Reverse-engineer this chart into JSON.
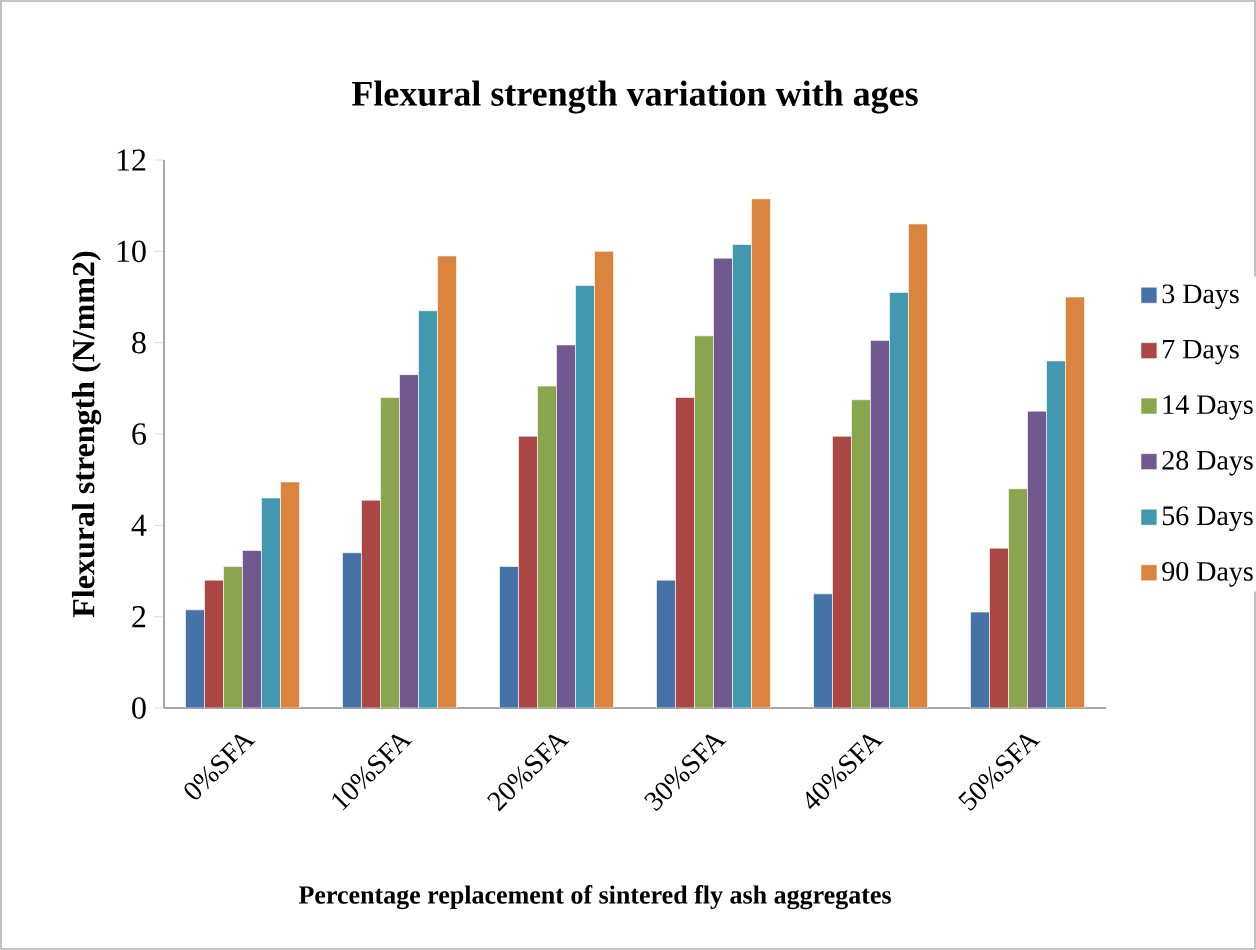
{
  "chart_data": {
    "type": "bar",
    "title": "Flexural strength variation with ages",
    "xlabel": "Percentage replacement of sintered fly ash aggregates",
    "ylabel": "Flexural strength (N/mm2)",
    "categories": [
      "0%SFA",
      "10%SFA",
      "20%SFA",
      "30%SFA",
      "40%SFA",
      "50%SFA"
    ],
    "series": [
      {
        "name": "3 Days",
        "color": "#4572a7",
        "values": [
          2.15,
          3.4,
          3.1,
          2.8,
          2.5,
          2.1
        ]
      },
      {
        "name": "7 Days",
        "color": "#aa4643",
        "values": [
          2.8,
          4.55,
          5.95,
          6.8,
          5.95,
          3.5
        ]
      },
      {
        "name": "14 Days",
        "color": "#89a54e",
        "values": [
          3.1,
          6.8,
          7.05,
          8.15,
          6.75,
          4.8
        ]
      },
      {
        "name": "28 Days",
        "color": "#71588f",
        "values": [
          3.45,
          7.3,
          7.95,
          9.85,
          8.05,
          6.5
        ]
      },
      {
        "name": "56 Days",
        "color": "#4198af",
        "values": [
          4.6,
          8.7,
          9.25,
          10.15,
          9.1,
          7.6
        ]
      },
      {
        "name": "90 Days",
        "color": "#db843d",
        "values": [
          4.95,
          9.9,
          10.0,
          11.15,
          10.6,
          9.0
        ]
      }
    ],
    "ylim": [
      0,
      12
    ],
    "yticks": [
      0,
      2,
      4,
      6,
      8,
      10,
      12
    ],
    "grid": false,
    "legend": "right"
  }
}
